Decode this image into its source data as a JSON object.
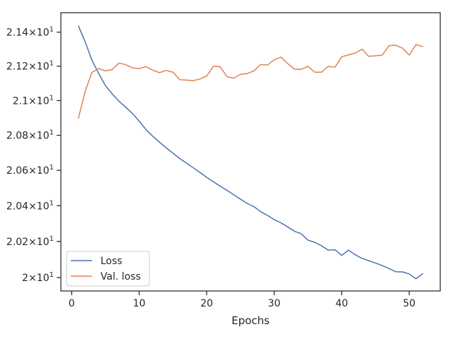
{
  "chart_data": {
    "type": "line",
    "title": "",
    "xlabel": "Epochs",
    "ylabel": "",
    "xlim": [
      -1.6,
      54.6
    ],
    "ylim": [
      19.926,
      21.515
    ],
    "x_ticks": [
      0,
      10,
      20,
      30,
      40,
      50
    ],
    "y_ticks": [
      {
        "value": 20.0,
        "mantissa": "2",
        "exponent": "1"
      },
      {
        "value": 20.2,
        "mantissa": "2.02",
        "exponent": "1"
      },
      {
        "value": 20.4,
        "mantissa": "2.04",
        "exponent": "1"
      },
      {
        "value": 20.6,
        "mantissa": "2.06",
        "exponent": "1"
      },
      {
        "value": 20.8,
        "mantissa": "2.08",
        "exponent": "1"
      },
      {
        "value": 21.0,
        "mantissa": "2.1",
        "exponent": "1"
      },
      {
        "value": 21.2,
        "mantissa": "2.12",
        "exponent": "1"
      },
      {
        "value": 21.4,
        "mantissa": "2.14",
        "exponent": "1"
      }
    ],
    "y_scale": "log",
    "grid": false,
    "legend_position": "lower-left",
    "x": [
      1,
      2,
      3,
      4,
      5,
      6,
      7,
      8,
      9,
      10,
      11,
      12,
      13,
      14,
      15,
      16,
      17,
      18,
      19,
      20,
      21,
      22,
      23,
      24,
      25,
      26,
      27,
      28,
      29,
      30,
      31,
      32,
      33,
      34,
      35,
      36,
      37,
      38,
      39,
      40,
      41,
      42,
      43,
      44,
      45,
      46,
      47,
      48,
      49,
      50,
      51,
      52
    ],
    "series": [
      {
        "name": "Loss",
        "color": "#4c72b0",
        "values": [
          21.437,
          21.343,
          21.235,
          21.158,
          21.087,
          21.039,
          20.997,
          20.962,
          20.925,
          20.882,
          20.833,
          20.795,
          20.761,
          20.728,
          20.698,
          20.667,
          20.641,
          20.615,
          20.588,
          20.56,
          20.535,
          20.51,
          20.487,
          20.462,
          20.437,
          20.413,
          20.395,
          20.366,
          20.346,
          20.322,
          20.304,
          20.281,
          20.257,
          20.243,
          20.207,
          20.195,
          20.176,
          20.152,
          20.154,
          20.122,
          20.152,
          20.126,
          20.106,
          20.093,
          20.08,
          20.066,
          20.05,
          20.032,
          20.031,
          20.02,
          19.993,
          20.021
        ]
      },
      {
        "name": "Val. loss",
        "color": "#dd8452",
        "values": [
          20.899,
          21.053,
          21.164,
          21.186,
          21.173,
          21.18,
          21.218,
          21.209,
          21.19,
          21.186,
          21.198,
          21.177,
          21.162,
          21.176,
          21.165,
          21.121,
          21.119,
          21.116,
          21.125,
          21.143,
          21.2,
          21.197,
          21.139,
          21.13,
          21.152,
          21.157,
          21.173,
          21.21,
          21.207,
          21.238,
          21.253,
          21.215,
          21.183,
          21.181,
          21.199,
          21.165,
          21.165,
          21.199,
          21.194,
          21.255,
          21.266,
          21.277,
          21.3,
          21.258,
          21.261,
          21.265,
          21.32,
          21.323,
          21.306,
          21.265,
          21.327,
          21.315
        ]
      }
    ]
  }
}
